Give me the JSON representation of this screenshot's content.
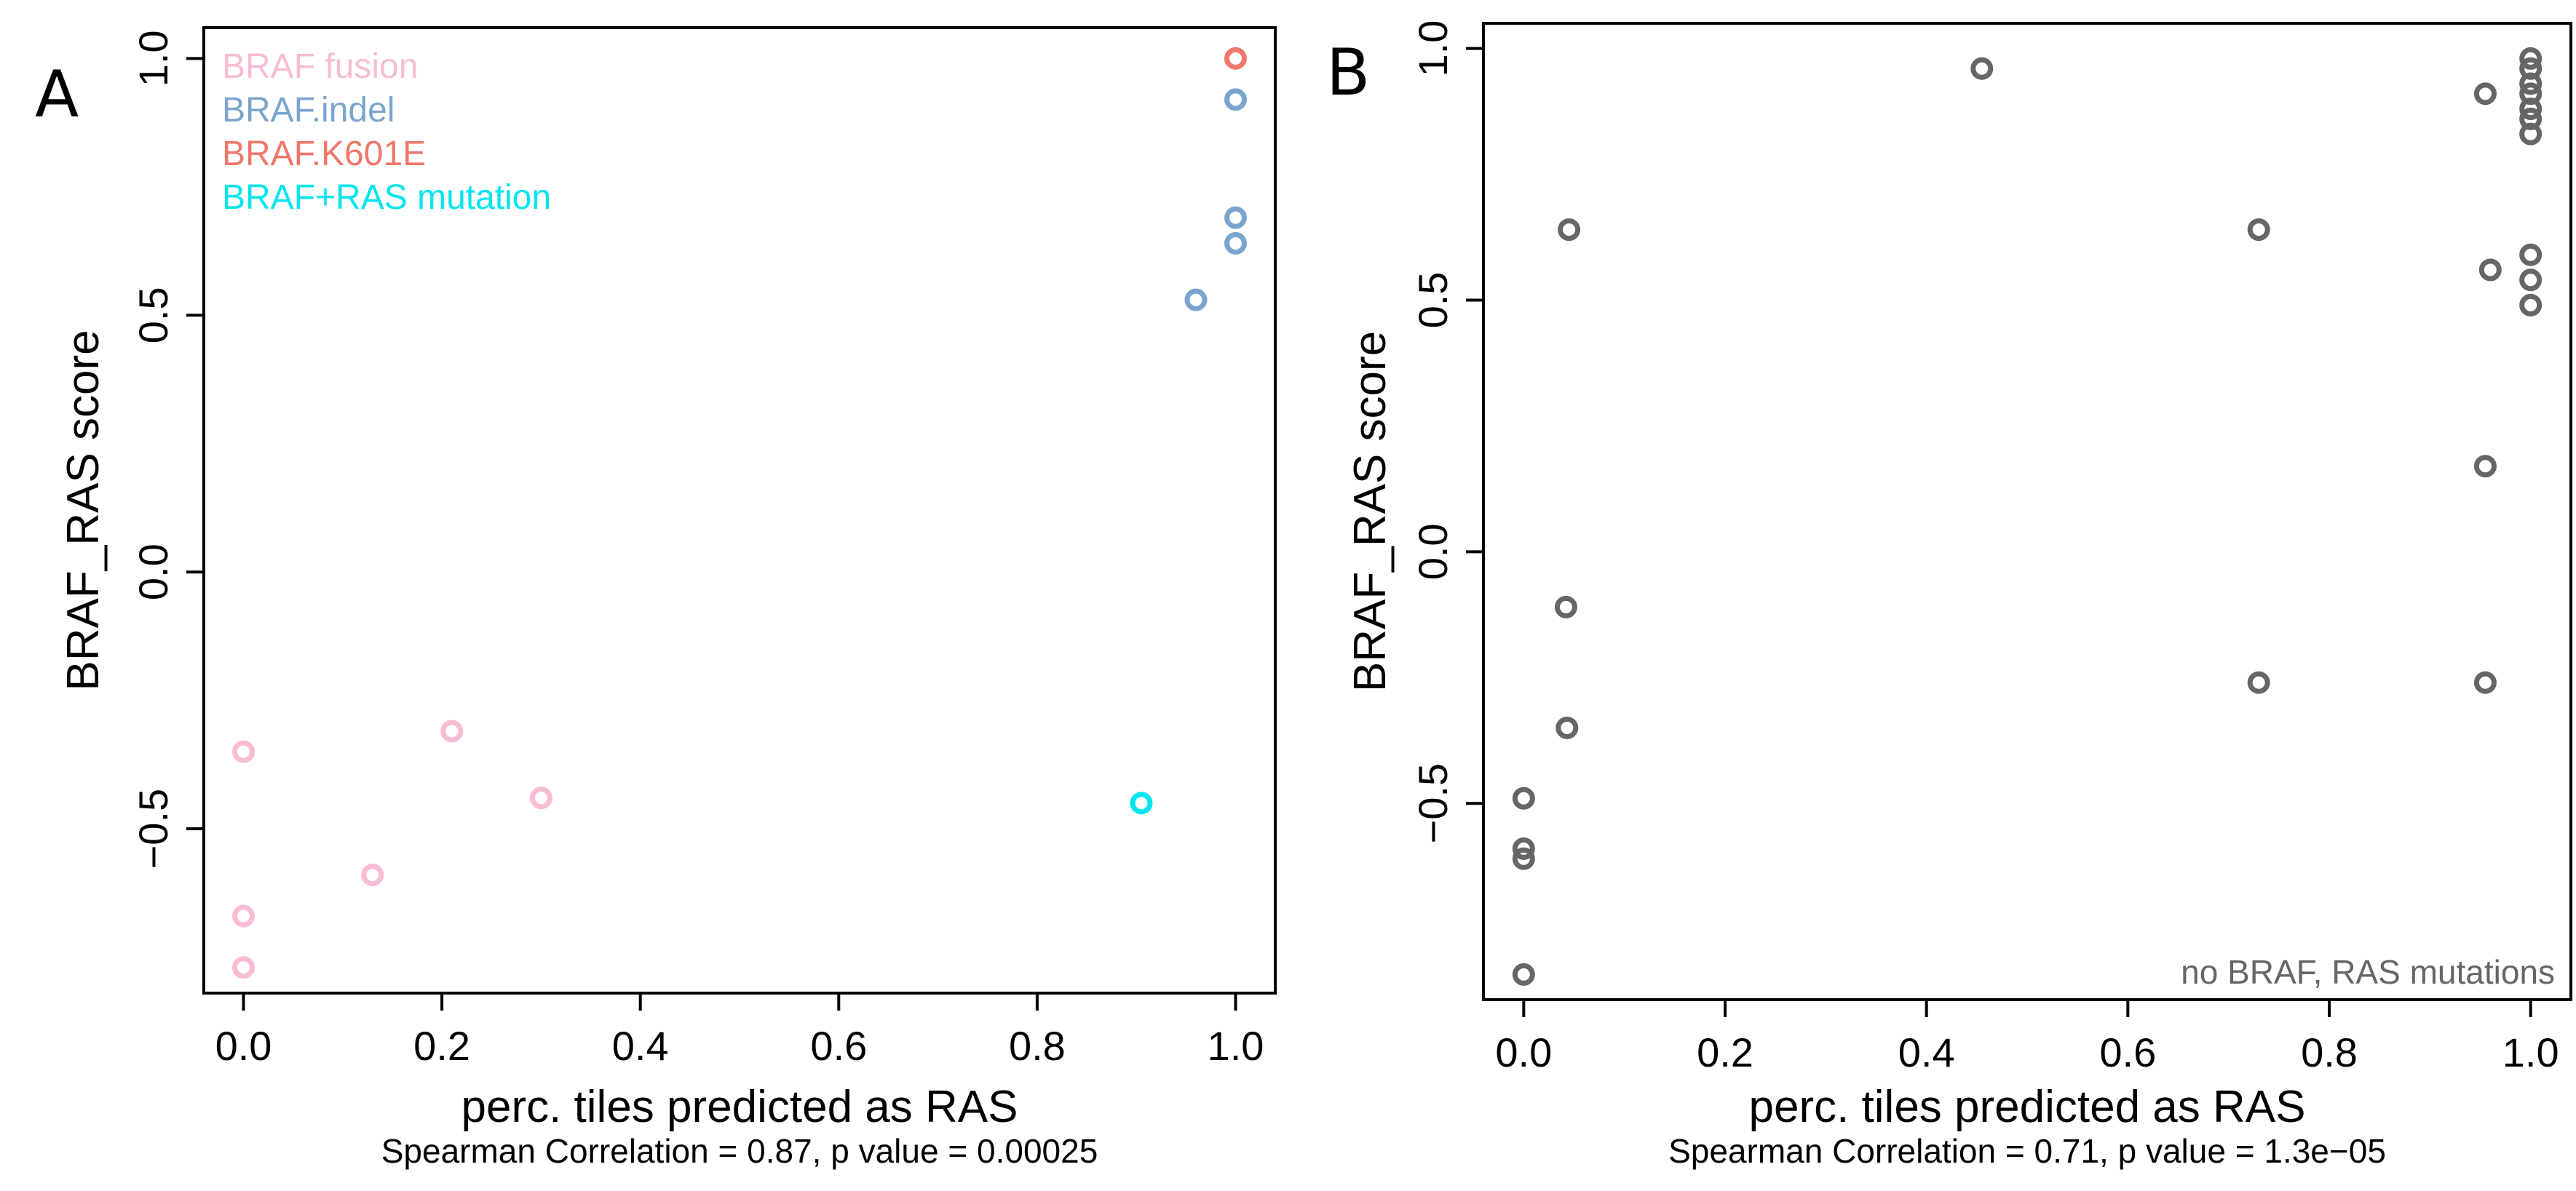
{
  "chart_data": [
    {
      "panel": "A",
      "type": "scatter",
      "title": "",
      "xlabel": "perc. tiles predicted as RAS",
      "ylabel": "BRAF_RAS score",
      "caption": "Spearman Correlation = 0.87, p value = 0.00025",
      "xlim": [
        -0.04,
        1.04
      ],
      "ylim": [
        -0.82,
        1.06
      ],
      "xticks": [
        0.0,
        0.2,
        0.4,
        0.6,
        0.8,
        1.0
      ],
      "xtick_labels": [
        "0.0",
        "0.2",
        "0.4",
        "0.6",
        "0.8",
        "1.0"
      ],
      "yticks": [
        -0.5,
        0.0,
        0.5,
        1.0
      ],
      "ytick_labels": [
        "−0.5",
        "0.0",
        "0.5",
        "1.0"
      ],
      "legend": "top-left",
      "corner_note": "",
      "series": [
        {
          "name": "BRAF fusion",
          "color": "#F9BCD5",
          "points": [
            [
              0.0,
              -0.35
            ],
            [
              0.0,
              -0.67
            ],
            [
              0.0,
              -0.77
            ],
            [
              0.13,
              -0.59
            ],
            [
              0.21,
              -0.31
            ],
            [
              0.3,
              -0.44
            ]
          ]
        },
        {
          "name": "BRAF.indel",
          "color": "#7AA6CE",
          "points": [
            [
              1.0,
              0.92
            ],
            [
              1.0,
              0.69
            ],
            [
              1.0,
              0.64
            ],
            [
              0.96,
              0.53
            ]
          ]
        },
        {
          "name": "BRAF.K601E",
          "color": "#F0776B",
          "points": [
            [
              1.0,
              1.0
            ]
          ]
        },
        {
          "name": "BRAF+RAS mutation",
          "color": "#00E5EE",
          "points": [
            [
              0.905,
              -0.45
            ]
          ]
        }
      ]
    },
    {
      "panel": "B",
      "type": "scatter",
      "title": "",
      "xlabel": "perc. tiles predicted as RAS",
      "ylabel": "BRAF_RAS score",
      "caption": "Spearman Correlation = 0.71, p value = 1.3e−05",
      "xlim": [
        -0.04,
        1.04
      ],
      "ylim": [
        -0.89,
        1.05
      ],
      "xticks": [
        0.0,
        0.2,
        0.4,
        0.6,
        0.8,
        1.0
      ],
      "xtick_labels": [
        "0.0",
        "0.2",
        "0.4",
        "0.6",
        "0.8",
        "1.0"
      ],
      "yticks": [
        -0.5,
        0.0,
        0.5,
        1.0
      ],
      "ytick_labels": [
        "−0.5",
        "0.0",
        "0.5",
        "1.0"
      ],
      "legend": "none",
      "corner_note": "no BRAF, RAS mutations",
      "series": [
        {
          "name": "no BRAF, RAS mutations",
          "color": "#666666",
          "points": [
            [
              0.0,
              -0.49
            ],
            [
              0.0,
              -0.59
            ],
            [
              0.0,
              -0.61
            ],
            [
              0.0,
              -0.84
            ],
            [
              0.045,
              0.64
            ],
            [
              0.042,
              -0.11
            ],
            [
              0.043,
              -0.35
            ],
            [
              0.455,
              0.96
            ],
            [
              0.73,
              0.64
            ],
            [
              0.73,
              -0.26
            ],
            [
              0.955,
              0.91
            ],
            [
              0.96,
              0.56
            ],
            [
              0.955,
              0.17
            ],
            [
              0.955,
              -0.26
            ],
            [
              1.0,
              0.98
            ],
            [
              1.0,
              0.96
            ],
            [
              1.0,
              0.93
            ],
            [
              1.0,
              0.91
            ],
            [
              1.0,
              0.88
            ],
            [
              1.0,
              0.86
            ],
            [
              1.0,
              0.83
            ],
            [
              1.0,
              0.59
            ],
            [
              1.0,
              0.54
            ],
            [
              1.0,
              0.49
            ]
          ]
        }
      ]
    }
  ]
}
